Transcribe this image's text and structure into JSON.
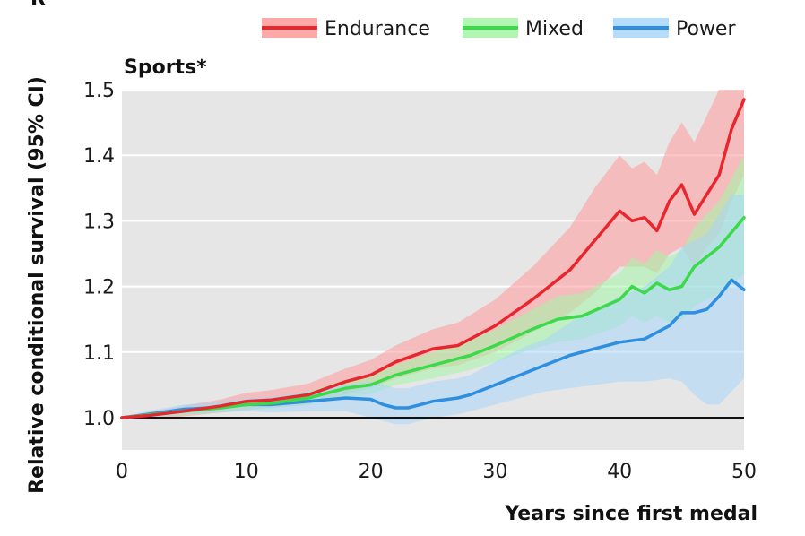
{
  "chart_data": {
    "type": "line",
    "title": "Sports*",
    "xlabel": "Years since first medal",
    "ylabel": "Relative conditional survival (95% CI)",
    "cut_off_label": "R",
    "xlim": [
      0,
      50
    ],
    "ylim": [
      0.95,
      1.5
    ],
    "x_ticks": [
      0,
      10,
      20,
      30,
      40,
      50
    ],
    "y_ticks": [
      1.0,
      1.1,
      1.2,
      1.3,
      1.4,
      1.5
    ],
    "x_tick_labels": [
      "0",
      "10",
      "20",
      "30",
      "40",
      "50"
    ],
    "y_tick_labels": [
      "1.0",
      "1.1",
      "1.2",
      "1.3",
      "1.4",
      "1.5"
    ],
    "reference_line": 1.0,
    "grid": "horizontal",
    "legend_position": "top",
    "series": [
      {
        "name": "Endurance",
        "color": "#e8262e",
        "band_color": "#ff9999",
        "x": [
          0,
          2,
          5,
          8,
          10,
          12,
          15,
          18,
          20,
          22,
          25,
          27,
          30,
          33,
          36,
          38,
          40,
          41,
          42,
          43,
          44,
          45,
          46,
          47,
          48,
          49,
          50
        ],
        "y": [
          1.0,
          1.003,
          1.01,
          1.018,
          1.025,
          1.027,
          1.035,
          1.055,
          1.065,
          1.085,
          1.105,
          1.11,
          1.14,
          1.18,
          1.225,
          1.27,
          1.315,
          1.3,
          1.305,
          1.285,
          1.33,
          1.355,
          1.31,
          1.34,
          1.37,
          1.44,
          1.485
        ],
        "lower": [
          1.0,
          0.998,
          1.002,
          1.008,
          1.012,
          1.015,
          1.02,
          1.035,
          1.045,
          1.06,
          1.075,
          1.08,
          1.1,
          1.13,
          1.16,
          1.19,
          1.23,
          1.23,
          1.23,
          1.22,
          1.25,
          1.26,
          1.23,
          1.26,
          1.28,
          1.33,
          1.37
        ],
        "upper": [
          1.0,
          1.008,
          1.018,
          1.028,
          1.038,
          1.042,
          1.052,
          1.075,
          1.088,
          1.11,
          1.135,
          1.145,
          1.18,
          1.23,
          1.29,
          1.35,
          1.4,
          1.38,
          1.39,
          1.37,
          1.42,
          1.45,
          1.42,
          1.46,
          1.5,
          1.5,
          1.5
        ]
      },
      {
        "name": "Mixed",
        "color": "#3cd94a",
        "band_color": "#a3f5a6",
        "x": [
          0,
          2,
          5,
          8,
          10,
          12,
          15,
          18,
          20,
          22,
          25,
          28,
          30,
          33,
          35,
          37,
          40,
          41,
          42,
          43,
          44,
          45,
          46,
          48,
          50
        ],
        "y": [
          1.0,
          1.004,
          1.01,
          1.015,
          1.02,
          1.022,
          1.03,
          1.045,
          1.05,
          1.065,
          1.08,
          1.095,
          1.11,
          1.135,
          1.15,
          1.155,
          1.18,
          1.2,
          1.19,
          1.205,
          1.195,
          1.2,
          1.23,
          1.26,
          1.305
        ],
        "lower": [
          1.0,
          1.0,
          1.004,
          1.008,
          1.012,
          1.014,
          1.02,
          1.032,
          1.036,
          1.05,
          1.06,
          1.073,
          1.085,
          1.105,
          1.115,
          1.12,
          1.14,
          1.155,
          1.145,
          1.155,
          1.145,
          1.15,
          1.17,
          1.19,
          1.22
        ],
        "upper": [
          1.0,
          1.008,
          1.016,
          1.022,
          1.028,
          1.03,
          1.04,
          1.058,
          1.065,
          1.08,
          1.1,
          1.118,
          1.135,
          1.165,
          1.185,
          1.19,
          1.22,
          1.245,
          1.235,
          1.255,
          1.245,
          1.255,
          1.29,
          1.33,
          1.4
        ]
      },
      {
        "name": "Power",
        "color": "#2e8fe0",
        "band_color": "#a8d6fa",
        "x": [
          0,
          2,
          5,
          8,
          10,
          12,
          15,
          18,
          20,
          21,
          22,
          23,
          24,
          25,
          27,
          28,
          30,
          32,
          34,
          36,
          38,
          40,
          42,
          44,
          45,
          46,
          47,
          48,
          49,
          50
        ],
        "y": [
          1.0,
          1.005,
          1.013,
          1.016,
          1.02,
          1.02,
          1.025,
          1.03,
          1.028,
          1.02,
          1.015,
          1.015,
          1.02,
          1.025,
          1.03,
          1.035,
          1.05,
          1.065,
          1.08,
          1.095,
          1.105,
          1.115,
          1.12,
          1.14,
          1.16,
          1.16,
          1.165,
          1.185,
          1.21,
          1.195
        ],
        "lower": [
          1.0,
          1.0,
          1.006,
          1.008,
          1.01,
          1.008,
          1.01,
          1.01,
          1.0,
          0.995,
          0.99,
          0.99,
          0.995,
          1.0,
          1.005,
          1.01,
          1.02,
          1.03,
          1.04,
          1.045,
          1.05,
          1.055,
          1.055,
          1.06,
          1.055,
          1.035,
          1.02,
          1.02,
          1.04,
          1.06
        ],
        "upper": [
          1.0,
          1.01,
          1.02,
          1.025,
          1.03,
          1.032,
          1.04,
          1.05,
          1.055,
          1.05,
          1.045,
          1.045,
          1.05,
          1.055,
          1.06,
          1.065,
          1.085,
          1.105,
          1.12,
          1.145,
          1.165,
          1.185,
          1.2,
          1.23,
          1.26,
          1.27,
          1.28,
          1.31,
          1.34,
          1.34
        ]
      }
    ]
  }
}
